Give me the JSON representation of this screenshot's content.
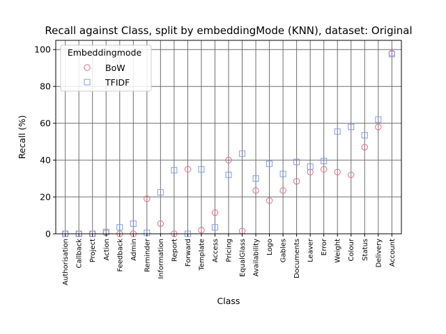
{
  "chart_data": {
    "type": "scatter",
    "title": "Recall against Class, split by embeddingMode (KNN), dataset: Original",
    "xlabel": "Class",
    "ylabel": "Recall (%)",
    "ylim": [
      0,
      105
    ],
    "yticks": [
      0,
      20,
      40,
      60,
      80,
      100
    ],
    "grid": true,
    "legend_title": "Embeddingmode",
    "legend_position": "top-left",
    "categories": [
      "Authorisation",
      "Callback",
      "Project",
      "Action",
      "Feedback",
      "Admin",
      "Reminder",
      "Information",
      "Report",
      "Forward",
      "Template",
      "Access",
      "Pricing",
      "EqualGlass",
      "Availability",
      "Logo",
      "Gables",
      "Documents",
      "Leaver",
      "Error",
      "Weight",
      "Colour",
      "Status",
      "Delivery",
      "Account"
    ],
    "series": [
      {
        "name": "BoW",
        "marker": "circle",
        "color": "#e06c85",
        "values": [
          0,
          0,
          0,
          0.5,
          0,
          0,
          19,
          5.5,
          0,
          35,
          2,
          11.5,
          40,
          1.5,
          23.5,
          18,
          23.5,
          28.5,
          33.5,
          35,
          33.5,
          32,
          47,
          58,
          98
        ]
      },
      {
        "name": "TFIDF",
        "marker": "square",
        "color": "#7f9de3",
        "values": [
          0,
          0,
          0,
          1,
          3.5,
          5.5,
          0.5,
          22.5,
          34.5,
          0,
          35,
          3.5,
          32,
          43.5,
          30,
          38,
          32.5,
          39,
          36.5,
          39.5,
          55.5,
          58,
          53.5,
          62,
          97.5
        ]
      }
    ]
  }
}
